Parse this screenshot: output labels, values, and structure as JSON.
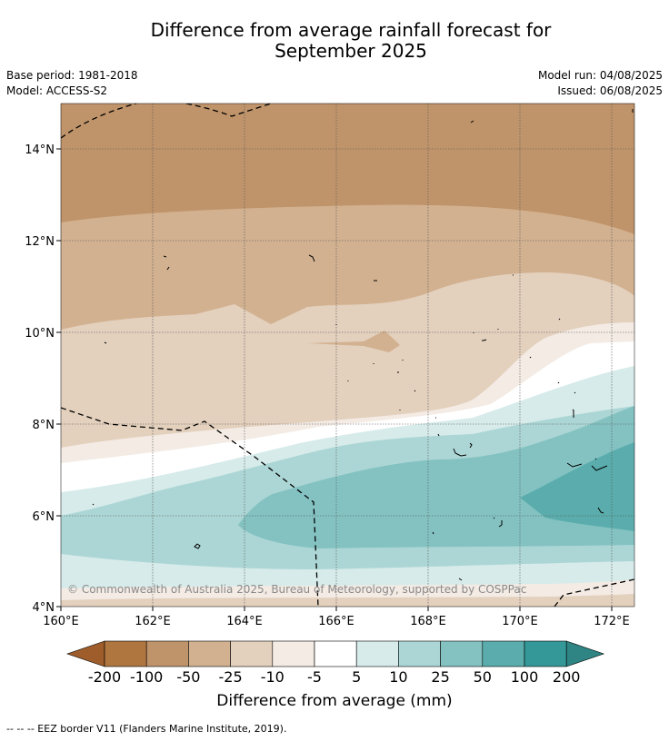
{
  "header": {
    "title_line1": "Difference from average rainfall forecast for",
    "title_line2": "September 2025",
    "base_period": "Base period: 1981-2018",
    "model": "Model: ACCESS-S2",
    "model_run": "Model run: 04/08/2025",
    "issued": "Issued: 06/08/2025"
  },
  "map": {
    "lat_labels": [
      "14°N",
      "12°N",
      "10°N",
      "8°N",
      "6°N",
      "4°N"
    ],
    "lon_labels": [
      "160°E",
      "162°E",
      "164°E",
      "166°E",
      "168°E",
      "170°E",
      "172°E"
    ],
    "copyright": "© Commonwealth of Australia 2025, Bureau of Meteorology, supported by COSPPac"
  },
  "colorbar": {
    "title": "Difference from average (mm)",
    "tick_labels": [
      "-200",
      "-100",
      "-50",
      "-25",
      "-10",
      "-5",
      "5",
      "10",
      "25",
      "50",
      "100",
      "200"
    ],
    "colors": [
      "#9e5d2a",
      "#b07640",
      "#c0946a",
      "#d2b190",
      "#e3d0bd",
      "#f3ebe4",
      "#ffffff",
      "#d6ebea",
      "#acd6d5",
      "#84c2c2",
      "#5aadac",
      "#339897",
      "#2e8584"
    ]
  },
  "legend": {
    "eez_note": "--  --  -- EEZ border V11 (Flanders Marine Institute, 2019)."
  }
}
